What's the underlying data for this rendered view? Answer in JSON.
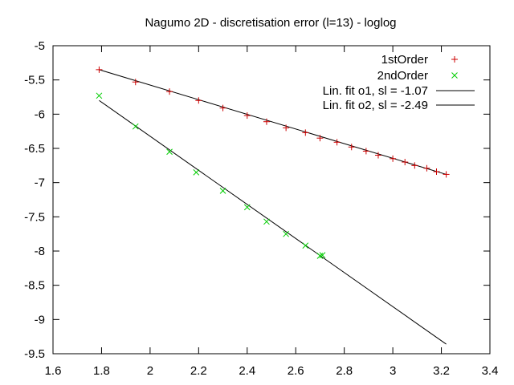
{
  "chart_data": {
    "type": "scatter",
    "title": "Nagumo 2D - discretisation error (l=13) - loglog",
    "xlabel": "",
    "ylabel": "",
    "xlim": [
      1.6,
      3.4
    ],
    "ylim": [
      -9.5,
      -5
    ],
    "xticks": [
      "1.6",
      "1.8",
      "2",
      "2.2",
      "2.4",
      "2.6",
      "2.8",
      "3",
      "3.2",
      "3.4"
    ],
    "yticks": [
      "-5",
      "-5.5",
      "-6",
      "-6.5",
      "-7",
      "-7.5",
      "-8",
      "-8.5",
      "-9",
      "-9.5"
    ],
    "grid": false,
    "legend_position": "top-right",
    "series": [
      {
        "name": "1stOrder",
        "marker": "plus",
        "color": "#cc0000",
        "x": [
          1.79,
          1.94,
          2.08,
          2.2,
          2.3,
          2.4,
          2.48,
          2.56,
          2.64,
          2.7,
          2.77,
          2.83,
          2.89,
          2.94,
          3.0,
          3.05,
          3.09,
          3.14,
          3.18,
          3.22
        ],
        "y": [
          -5.35,
          -5.53,
          -5.67,
          -5.8,
          -5.91,
          -6.02,
          -6.11,
          -6.2,
          -6.27,
          -6.35,
          -6.41,
          -6.48,
          -6.54,
          -6.6,
          -6.65,
          -6.7,
          -6.75,
          -6.79,
          -6.84,
          -6.88
        ]
      },
      {
        "name": "2ndOrder",
        "marker": "cross",
        "color": "#00cc00",
        "x": [
          1.79,
          1.94,
          2.08,
          2.19,
          2.3,
          2.4,
          2.48,
          2.56,
          2.64,
          2.7,
          2.71
        ],
        "y": [
          -5.73,
          -6.18,
          -6.55,
          -6.85,
          -7.12,
          -7.36,
          -7.57,
          -7.75,
          -7.92,
          -8.07,
          -8.06
        ]
      },
      {
        "name": "Lin. fit o1, sl = -1.07",
        "kind": "line",
        "color": "#000000",
        "x": [
          1.79,
          3.22
        ],
        "y": [
          -5.35,
          -6.88
        ]
      },
      {
        "name": "Lin. fit o2, sl = -2.49",
        "kind": "line",
        "color": "#000000",
        "x": [
          1.79,
          3.22
        ],
        "y": [
          -5.8,
          -9.36
        ]
      }
    ]
  }
}
